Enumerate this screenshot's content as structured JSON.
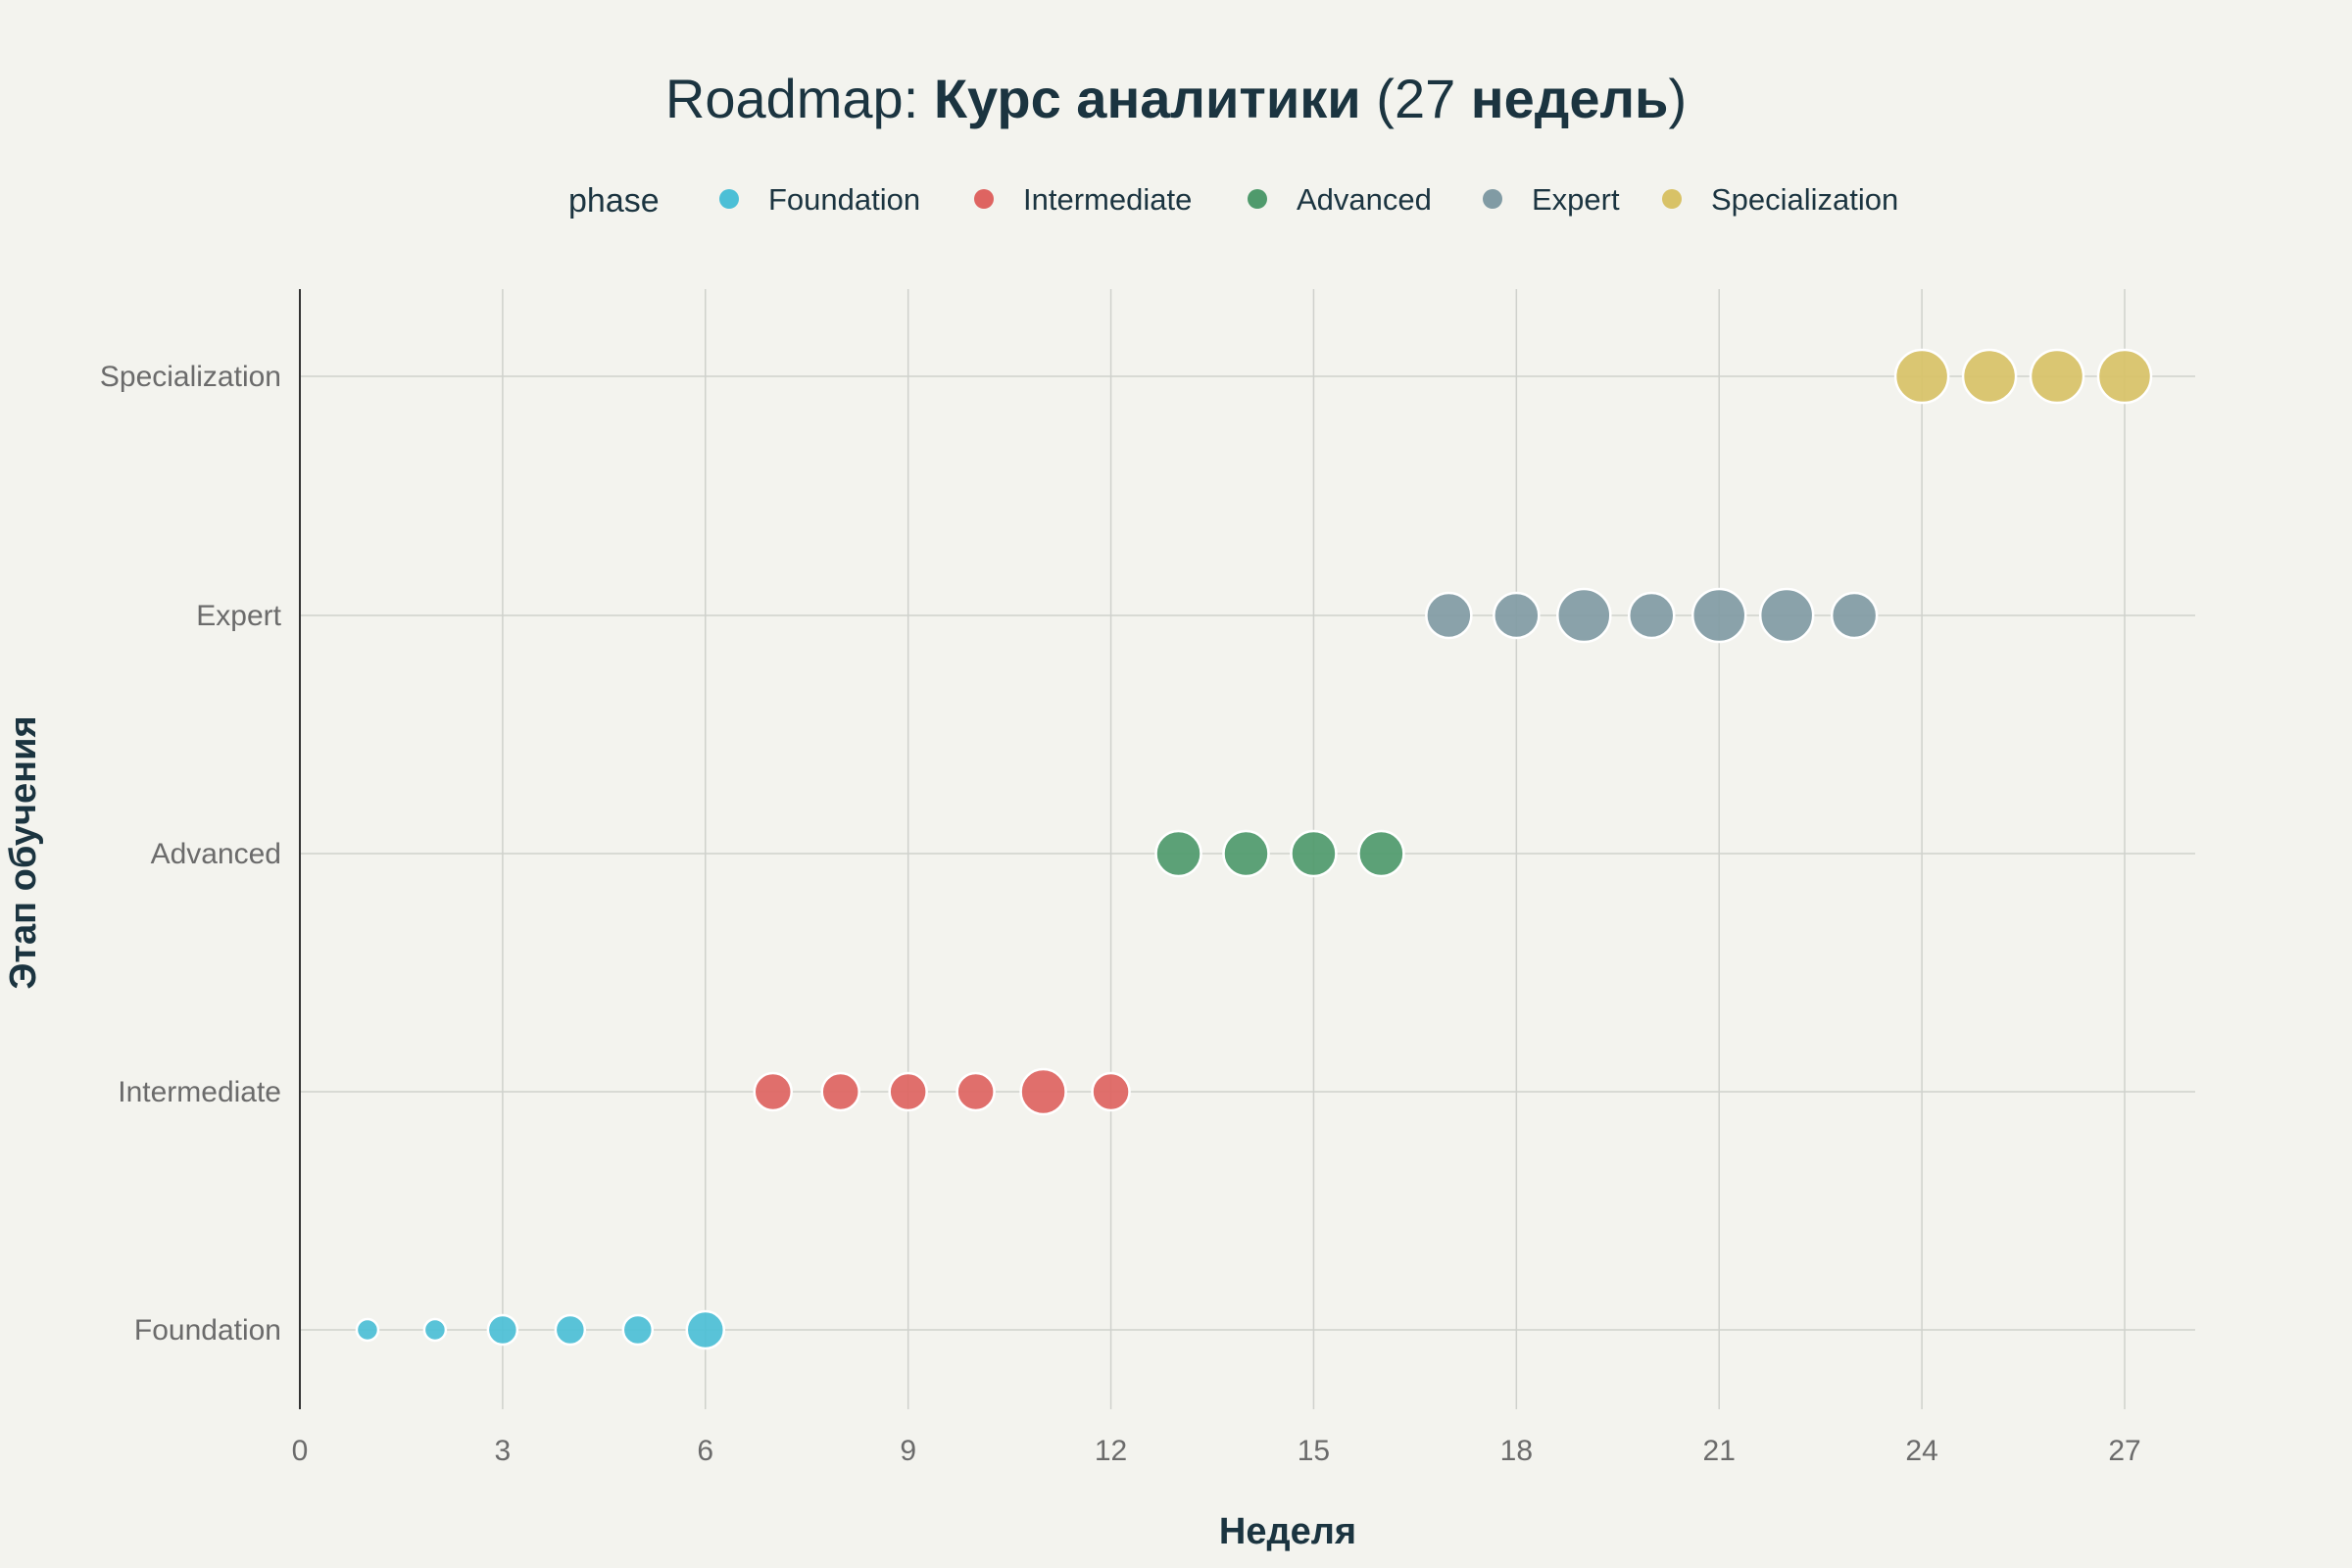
{
  "title": {
    "prefix": "Roadmap: ",
    "bold1": "Курс аналитики",
    "mid": " (27 ",
    "bold2": "недель",
    "suffix": ")"
  },
  "legend": {
    "title": "phase",
    "placement": "top-horizontal"
  },
  "colors": {
    "background": "#f3f3ee",
    "grid": "#cfd1cc",
    "axis_line": "#333333",
    "title_text": "#1b3440",
    "tick_text": "#6b6b6b"
  },
  "chart_data": {
    "type": "scatter",
    "title": "Roadmap: Курс аналитики (27 недель)",
    "xlabel": "Неделя",
    "ylabel": "Этап обучения",
    "xlim": [
      0,
      28
    ],
    "xticks": [
      0,
      3,
      6,
      9,
      12,
      15,
      18,
      21,
      24,
      27
    ],
    "categories": [
      "Foundation",
      "Intermediate",
      "Advanced",
      "Expert",
      "Specialization"
    ],
    "grid": true,
    "series": [
      {
        "name": "Foundation",
        "color": "#4cbfd6",
        "x": [
          1,
          2,
          3,
          4,
          5,
          6
        ],
        "size": [
          1,
          1,
          2,
          2,
          2,
          3
        ]
      },
      {
        "name": "Intermediate",
        "color": "#de6461",
        "x": [
          7,
          8,
          9,
          10,
          11,
          12
        ],
        "size": [
          3,
          3,
          3,
          3,
          4,
          3
        ]
      },
      {
        "name": "Advanced",
        "color": "#4f9a6c",
        "x": [
          13,
          14,
          15,
          16
        ],
        "size": [
          4,
          4,
          4,
          4
        ]
      },
      {
        "name": "Expert",
        "color": "#819ba4",
        "x": [
          17,
          18,
          19,
          20,
          21,
          22,
          23
        ],
        "size": [
          4,
          4,
          5,
          4,
          5,
          5,
          4
        ]
      },
      {
        "name": "Specialization",
        "color": "#d8c267",
        "x": [
          24,
          25,
          26,
          27
        ],
        "size": [
          5,
          5,
          5,
          5
        ]
      }
    ]
  }
}
